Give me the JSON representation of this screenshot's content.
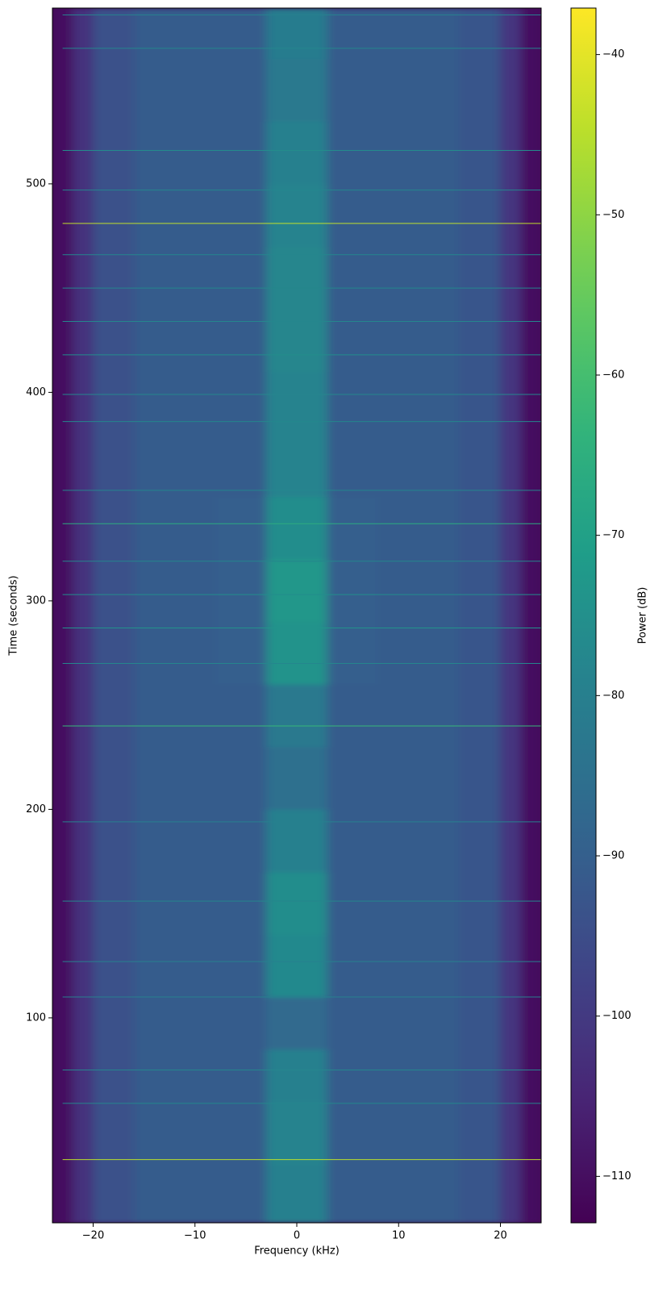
{
  "chart_data": {
    "type": "spectrogram",
    "colormap": "viridis",
    "xlabel": "Frequency (kHz)",
    "ylabel": "Time (seconds)",
    "colorbar_label": "Power (dB)",
    "xlim": [
      -24,
      24
    ],
    "ylim": [
      1.7,
      584.3
    ],
    "clim": [
      -112.9,
      -37.1
    ],
    "xticks": [
      {
        "value": -20,
        "label": "−20"
      },
      {
        "value": -10,
        "label": "−10"
      },
      0,
      10,
      20
    ],
    "yticks": [
      100,
      200,
      300,
      400,
      500
    ],
    "cticks": [
      {
        "value": -110,
        "label": "−110"
      },
      {
        "value": -100,
        "label": "−100"
      },
      {
        "value": -90,
        "label": "−90"
      },
      {
        "value": -80,
        "label": "−80"
      },
      {
        "value": -70,
        "label": "−70"
      },
      {
        "value": -60,
        "label": "−60"
      },
      {
        "value": -50,
        "label": "−50"
      },
      {
        "value": -40,
        "label": "−40"
      }
    ],
    "freq_edges": [
      -24,
      -22,
      -20,
      -16,
      -12,
      -8,
      -3,
      3,
      8,
      12,
      16,
      20,
      22,
      24
    ],
    "time_edges": [
      1.7,
      30,
      60,
      85,
      110,
      140,
      170,
      200,
      230,
      260,
      290,
      320,
      350,
      380,
      410,
      440,
      470,
      500,
      530,
      560,
      584.3
    ],
    "z": [
      [
        -110,
        -102,
        -94,
        -91,
        -91,
        -91,
        -80,
        -91,
        -91,
        -91,
        -93,
        -101,
        -110
      ],
      [
        -110,
        -102,
        -94,
        -91,
        -91,
        -91,
        -79,
        -91,
        -91,
        -91,
        -93,
        -101,
        -110
      ],
      [
        -110,
        -102,
        -94,
        -91,
        -91,
        -91,
        -80,
        -91,
        -91,
        -91,
        -93,
        -101,
        -110
      ],
      [
        -110,
        -102,
        -94,
        -91,
        -91,
        -91,
        -87,
        -91,
        -91,
        -91,
        -93,
        -101,
        -110
      ],
      [
        -110,
        -102,
        -94,
        -91,
        -91,
        -91,
        -77,
        -91,
        -91,
        -91,
        -93,
        -101,
        -110
      ],
      [
        -110,
        -102,
        -94,
        -91,
        -91,
        -91,
        -76,
        -91,
        -91,
        -91,
        -93,
        -101,
        -110
      ],
      [
        -110,
        -102,
        -94,
        -91,
        -91,
        -91,
        -80,
        -91,
        -91,
        -91,
        -93,
        -101,
        -110
      ],
      [
        -110,
        -102,
        -94,
        -91,
        -91,
        -91,
        -85,
        -91,
        -91,
        -91,
        -93,
        -101,
        -110
      ],
      [
        -110,
        -102,
        -94,
        -91,
        -91,
        -91,
        -82,
        -91,
        -91,
        -91,
        -93,
        -101,
        -110
      ],
      [
        -110,
        -102,
        -94,
        -91,
        -91,
        -90,
        -74,
        -90,
        -91,
        -91,
        -93,
        -101,
        -110
      ],
      [
        -110,
        -102,
        -94,
        -91,
        -91,
        -90,
        -73,
        -90,
        -91,
        -91,
        -93,
        -101,
        -110
      ],
      [
        -110,
        -102,
        -94,
        -91,
        -91,
        -90,
        -76,
        -90,
        -91,
        -91,
        -93,
        -101,
        -110
      ],
      [
        -110,
        -102,
        -94,
        -91,
        -91,
        -91,
        -79,
        -91,
        -91,
        -91,
        -93,
        -101,
        -110
      ],
      [
        -110,
        -102,
        -94,
        -91,
        -91,
        -91,
        -79,
        -91,
        -91,
        -91,
        -93,
        -101,
        -110
      ],
      [
        -110,
        -102,
        -94,
        -91,
        -91,
        -91,
        -78,
        -91,
        -91,
        -91,
        -93,
        -101,
        -110
      ],
      [
        -110,
        -102,
        -94,
        -91,
        -91,
        -91,
        -78,
        -91,
        -91,
        -91,
        -93,
        -101,
        -110
      ],
      [
        -110,
        -102,
        -94,
        -91,
        -91,
        -91,
        -79,
        -91,
        -91,
        -91,
        -93,
        -101,
        -110
      ],
      [
        -110,
        -102,
        -94,
        -91,
        -91,
        -91,
        -80,
        -91,
        -91,
        -91,
        -93,
        -101,
        -110
      ],
      [
        -110,
        -102,
        -94,
        -91,
        -91,
        -91,
        -82,
        -91,
        -91,
        -91,
        -93,
        -101,
        -110
      ],
      [
        -110,
        -102,
        -94,
        -91,
        -91,
        -91,
        -81,
        -91,
        -91,
        -91,
        -93,
        -101,
        -110
      ]
    ],
    "spurs": {
      "time": [
        32,
        59,
        75,
        110,
        127,
        156,
        194,
        240,
        270,
        287,
        303,
        319,
        337,
        353,
        386,
        399,
        418,
        434,
        450,
        466,
        481,
        497,
        516,
        565,
        581
      ],
      "power": [
        -45,
        -78,
        -78,
        -80,
        -80,
        -78,
        -80,
        -62,
        -78,
        -74,
        -76,
        -78,
        -66,
        -78,
        -78,
        -78,
        -76,
        -78,
        -78,
        -78,
        -44,
        -78,
        -76,
        -78,
        -80
      ]
    }
  }
}
